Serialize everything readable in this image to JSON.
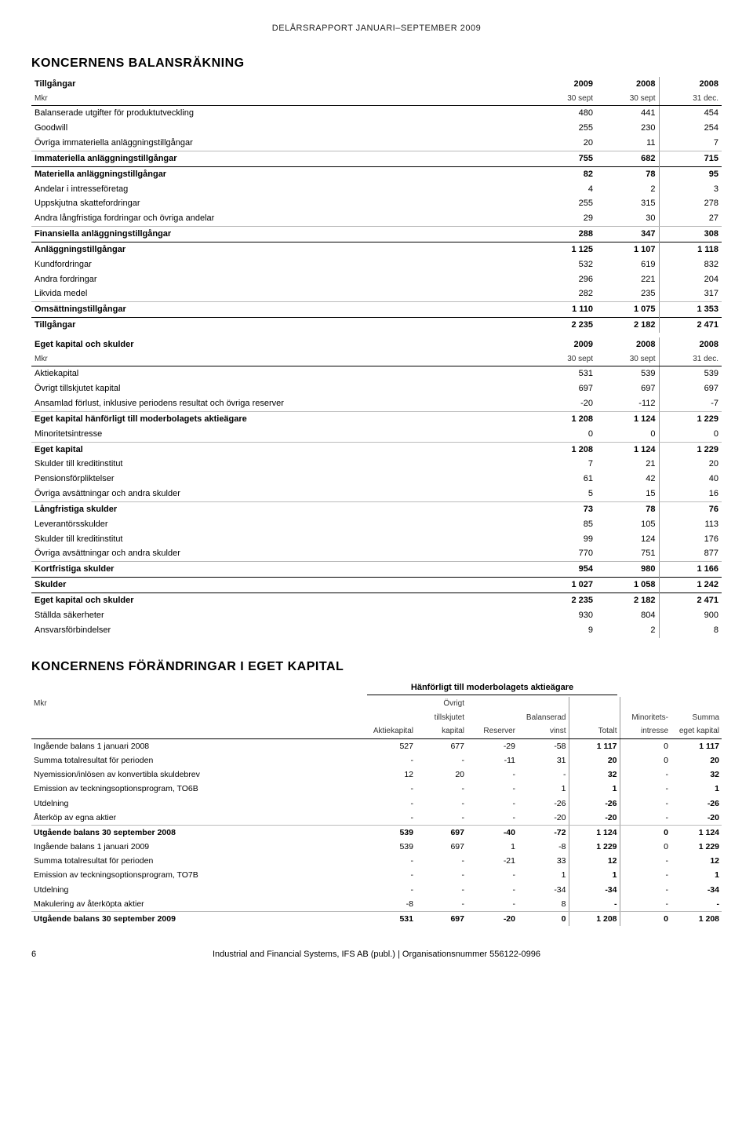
{
  "header": "DELÅRSRAPPORT JANUARI–SEPTEMBER 2009",
  "section1_title": "KONCERNENS BALANSRÄKNING",
  "assets_header": {
    "title": "Tillgångar",
    "sub": "Mkr",
    "c1a": "2009",
    "c1b": "30 sept",
    "c2a": "2008",
    "c2b": "30 sept",
    "c3a": "2008",
    "c3b": "31 dec."
  },
  "assets_rows": [
    {
      "l": "Balanserade utgifter för produktutveckling",
      "v": [
        "480",
        "441",
        "454"
      ],
      "type": "plain"
    },
    {
      "l": "Goodwill",
      "v": [
        "255",
        "230",
        "254"
      ],
      "type": "plain"
    },
    {
      "l": "Övriga immateriella anläggningstillgångar",
      "v": [
        "20",
        "11",
        "7"
      ],
      "type": "light"
    },
    {
      "l": "Immateriella anläggningstillgångar",
      "v": [
        "755",
        "682",
        "715"
      ],
      "type": "bold"
    },
    {
      "l": "Materiella anläggningstillgångar",
      "v": [
        "82",
        "78",
        "95"
      ],
      "type": "bold"
    },
    {
      "l": "Andelar i intresseföretag",
      "v": [
        "4",
        "2",
        "3"
      ],
      "type": "plain"
    },
    {
      "l": "Uppskjutna skattefordringar",
      "v": [
        "255",
        "315",
        "278"
      ],
      "type": "plain"
    },
    {
      "l": "Andra långfristiga fordringar och övriga andelar",
      "v": [
        "29",
        "30",
        "27"
      ],
      "type": "light"
    },
    {
      "l": "Finansiella anläggningstillgångar",
      "v": [
        "288",
        "347",
        "308"
      ],
      "type": "bold"
    },
    {
      "l": "Anläggningstillgångar",
      "v": [
        "1 125",
        "1 107",
        "1 118"
      ],
      "type": "bold"
    },
    {
      "l": "Kundfordringar",
      "v": [
        "532",
        "619",
        "832"
      ],
      "type": "plain"
    },
    {
      "l": "Andra fordringar",
      "v": [
        "296",
        "221",
        "204"
      ],
      "type": "plain"
    },
    {
      "l": "Likvida medel",
      "v": [
        "282",
        "235",
        "317"
      ],
      "type": "light"
    },
    {
      "l": "Omsättningstillgångar",
      "v": [
        "1 110",
        "1 075",
        "1 353"
      ],
      "type": "bold"
    },
    {
      "l": "Tillgångar",
      "v": [
        "2 235",
        "2 182",
        "2 471"
      ],
      "type": "bold"
    }
  ],
  "equity_header": {
    "title": "Eget kapital och skulder",
    "sub": "Mkr",
    "c1a": "2009",
    "c1b": "30 sept",
    "c2a": "2008",
    "c2b": "30 sept",
    "c3a": "2008",
    "c3b": "31 dec."
  },
  "equity_rows": [
    {
      "l": "Aktiekapital",
      "v": [
        "531",
        "539",
        "539"
      ],
      "type": "plain"
    },
    {
      "l": "Övrigt tillskjutet kapital",
      "v": [
        "697",
        "697",
        "697"
      ],
      "type": "plain"
    },
    {
      "l": "Ansamlad förlust, inklusive periodens resultat och övriga reserver",
      "v": [
        "-20",
        "-112",
        "-7"
      ],
      "type": "light"
    },
    {
      "l": "Eget kapital hänförligt till moderbolagets aktieägare",
      "v": [
        "1 208",
        "1 124",
        "1 229"
      ],
      "type": "bold"
    },
    {
      "l": "Minoritetsintresse",
      "v": [
        "0",
        "0",
        "0"
      ],
      "type": "light"
    },
    {
      "l": "Eget kapital",
      "v": [
        "1 208",
        "1 124",
        "1 229"
      ],
      "type": "bold"
    },
    {
      "l": "Skulder till kreditinstitut",
      "v": [
        "7",
        "21",
        "20"
      ],
      "type": "plain"
    },
    {
      "l": "Pensionsförpliktelser",
      "v": [
        "61",
        "42",
        "40"
      ],
      "type": "plain"
    },
    {
      "l": "Övriga avsättningar och andra skulder",
      "v": [
        "5",
        "15",
        "16"
      ],
      "type": "light"
    },
    {
      "l": "Långfristiga skulder",
      "v": [
        "73",
        "78",
        "76"
      ],
      "type": "bold"
    },
    {
      "l": "Leverantörsskulder",
      "v": [
        "85",
        "105",
        "113"
      ],
      "type": "plain"
    },
    {
      "l": "Skulder till kreditinstitut",
      "v": [
        "99",
        "124",
        "176"
      ],
      "type": "plain"
    },
    {
      "l": "Övriga avsättningar och andra skulder",
      "v": [
        "770",
        "751",
        "877"
      ],
      "type": "light"
    },
    {
      "l": "Kortfristiga skulder",
      "v": [
        "954",
        "980",
        "1 166"
      ],
      "type": "bold"
    },
    {
      "l": "Skulder",
      "v": [
        "1 027",
        "1 058",
        "1 242"
      ],
      "type": "bold"
    },
    {
      "l": "Eget kapital och skulder",
      "v": [
        "2 235",
        "2 182",
        "2 471"
      ],
      "type": "bold"
    },
    {
      "l": "Ställda säkerheter",
      "v": [
        "930",
        "804",
        "900"
      ],
      "type": "plain"
    },
    {
      "l": "Ansvarsförbindelser",
      "v": [
        "9",
        "2",
        "8"
      ],
      "type": "plain"
    }
  ],
  "section2_title": "KONCERNENS FÖRÄNDRINGAR I EGET KAPITAL",
  "equity_change": {
    "caption": "Hänförligt till moderbolagets aktieägare",
    "mkr": "Mkr",
    "cols": [
      "Aktiekapital",
      "Övrigt\ntillskjutet\nkapital",
      "Reserver",
      "Balanserad\nvinst",
      "Totalt",
      "Minoritets-\nintresse",
      "Summa\neget kapital"
    ],
    "rows": [
      {
        "l": "Ingående balans 1 januari 2008",
        "v": [
          "527",
          "677",
          "-29",
          "-58",
          "1 117",
          "0",
          "1 117"
        ],
        "boldcols": [
          4,
          6
        ],
        "type": "plain"
      },
      {
        "l": "Summa totalresultat för perioden",
        "v": [
          "-",
          "-",
          "-11",
          "31",
          "20",
          "0",
          "20"
        ],
        "boldcols": [
          4,
          6
        ],
        "type": "plain"
      },
      {
        "l": "Nyemission/inlösen av konvertibla skuldebrev",
        "v": [
          "12",
          "20",
          "-",
          "-",
          "32",
          "-",
          "32"
        ],
        "boldcols": [
          4,
          6
        ],
        "type": "plain"
      },
      {
        "l": "Emission av teckningsoptionsprogram, TO6B",
        "v": [
          "-",
          "-",
          "-",
          "1",
          "1",
          "-",
          "1"
        ],
        "boldcols": [
          4,
          6
        ],
        "type": "plain"
      },
      {
        "l": "Utdelning",
        "v": [
          "-",
          "-",
          "-",
          "-26",
          "-26",
          "-",
          "-26"
        ],
        "boldcols": [
          4,
          6
        ],
        "type": "plain"
      },
      {
        "l": "Återköp av egna aktier",
        "v": [
          "-",
          "-",
          "-",
          "-20",
          "-20",
          "-",
          "-20"
        ],
        "boldcols": [
          4,
          6
        ],
        "type": "light"
      },
      {
        "l": "Utgående balans 30 september 2008",
        "v": [
          "539",
          "697",
          "-40",
          "-72",
          "1 124",
          "0",
          "1 124"
        ],
        "boldcols": [
          0,
          1,
          2,
          3,
          4,
          5,
          6
        ],
        "type": "boldall"
      },
      {
        "l": "Ingående balans 1 januari 2009",
        "v": [
          "539",
          "697",
          "1",
          "-8",
          "1 229",
          "0",
          "1 229"
        ],
        "boldcols": [
          4,
          6
        ],
        "type": "plain"
      },
      {
        "l": "Summa totalresultat för perioden",
        "v": [
          "-",
          "-",
          "-21",
          "33",
          "12",
          "-",
          "12"
        ],
        "boldcols": [
          4,
          6
        ],
        "type": "plain"
      },
      {
        "l": "Emission av teckningsoptionsprogram, TO7B",
        "v": [
          "-",
          "-",
          "-",
          "1",
          "1",
          "-",
          "1"
        ],
        "boldcols": [
          4,
          6
        ],
        "type": "plain"
      },
      {
        "l": "Utdelning",
        "v": [
          "-",
          "-",
          "-",
          "-34",
          "-34",
          "-",
          "-34"
        ],
        "boldcols": [
          4,
          6
        ],
        "type": "plain"
      },
      {
        "l": "Makulering av återköpta aktier",
        "v": [
          "-8",
          "-",
          "-",
          "8",
          "-",
          "-",
          "-"
        ],
        "boldcols": [
          4,
          6
        ],
        "type": "light"
      },
      {
        "l": "Utgående balans 30 september 2009",
        "v": [
          "531",
          "697",
          "-20",
          "0",
          "1 208",
          "0",
          "1 208"
        ],
        "boldcols": [
          0,
          1,
          2,
          3,
          4,
          5,
          6
        ],
        "type": "boldall"
      }
    ]
  },
  "footer": {
    "page": "6",
    "text": "Industrial and Financial Systems, IFS AB (publ.) | Organisationsnummer 556122-0996"
  }
}
